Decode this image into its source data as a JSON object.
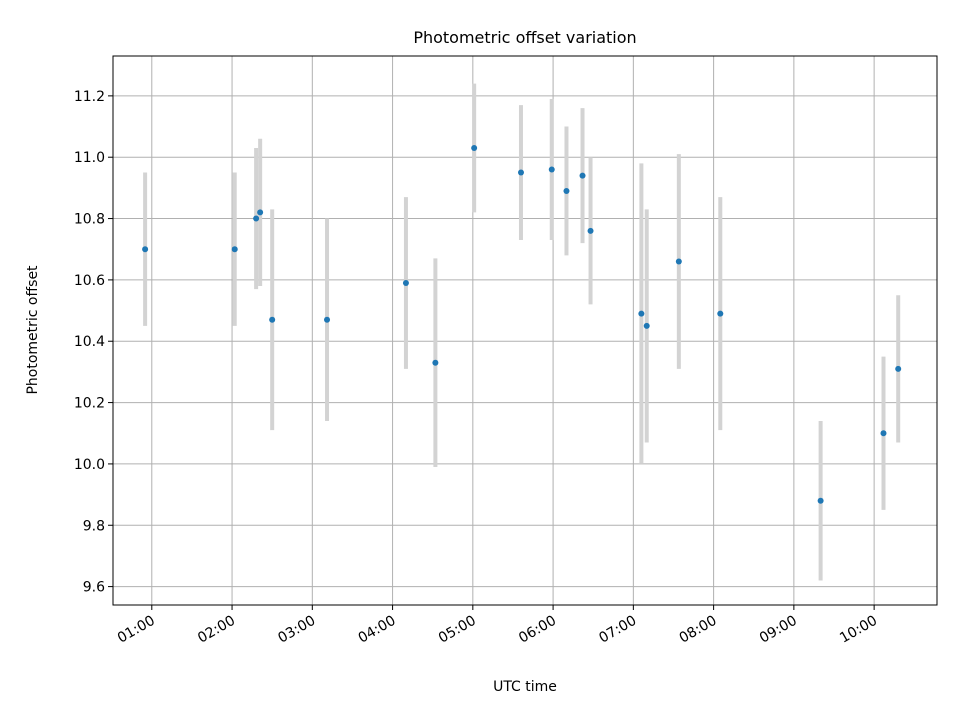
{
  "chart_data": {
    "type": "scatter",
    "title": "Photometric offset variation",
    "xlabel": "UTC time",
    "ylabel": "Photometric offset",
    "grid": true,
    "colors": {
      "point": "#1f77b4",
      "errorbar": "#d3d3d3",
      "grid": "#b0b0b0"
    },
    "xlim": [
      "00:31",
      "10:47"
    ],
    "ylim": [
      9.54,
      11.33
    ],
    "x_ticks": [
      "01:00",
      "02:00",
      "03:00",
      "04:00",
      "05:00",
      "06:00",
      "07:00",
      "08:00",
      "09:00",
      "10:00"
    ],
    "y_ticks": [
      "9.6",
      "9.8",
      "10.0",
      "10.2",
      "10.4",
      "10.6",
      "10.8",
      "11.0",
      "11.2"
    ],
    "points": [
      {
        "x": "00:55",
        "y": 10.7,
        "err": 0.25
      },
      {
        "x": "02:02",
        "y": 10.7,
        "err": 0.25
      },
      {
        "x": "02:18",
        "y": 10.8,
        "err": 0.23
      },
      {
        "x": "02:21",
        "y": 10.82,
        "err": 0.24
      },
      {
        "x": "02:30",
        "y": 10.47,
        "err": 0.36
      },
      {
        "x": "03:11",
        "y": 10.47,
        "err": 0.33
      },
      {
        "x": "04:10",
        "y": 10.59,
        "err": 0.28
      },
      {
        "x": "04:32",
        "y": 10.33,
        "err": 0.34
      },
      {
        "x": "05:01",
        "y": 11.03,
        "err": 0.21
      },
      {
        "x": "05:36",
        "y": 10.95,
        "err": 0.22
      },
      {
        "x": "05:59",
        "y": 10.96,
        "err": 0.23
      },
      {
        "x": "06:10",
        "y": 10.89,
        "err": 0.21
      },
      {
        "x": "06:22",
        "y": 10.94,
        "err": 0.22
      },
      {
        "x": "06:28",
        "y": 10.76,
        "err": 0.24
      },
      {
        "x": "07:06",
        "y": 10.49,
        "err": 0.49
      },
      {
        "x": "07:10",
        "y": 10.45,
        "err": 0.38
      },
      {
        "x": "07:34",
        "y": 10.66,
        "err": 0.35
      },
      {
        "x": "08:05",
        "y": 10.49,
        "err": 0.38
      },
      {
        "x": "09:20",
        "y": 9.88,
        "err": 0.26
      },
      {
        "x": "10:07",
        "y": 10.1,
        "err": 0.25
      },
      {
        "x": "10:18",
        "y": 10.31,
        "err": 0.24
      }
    ]
  }
}
